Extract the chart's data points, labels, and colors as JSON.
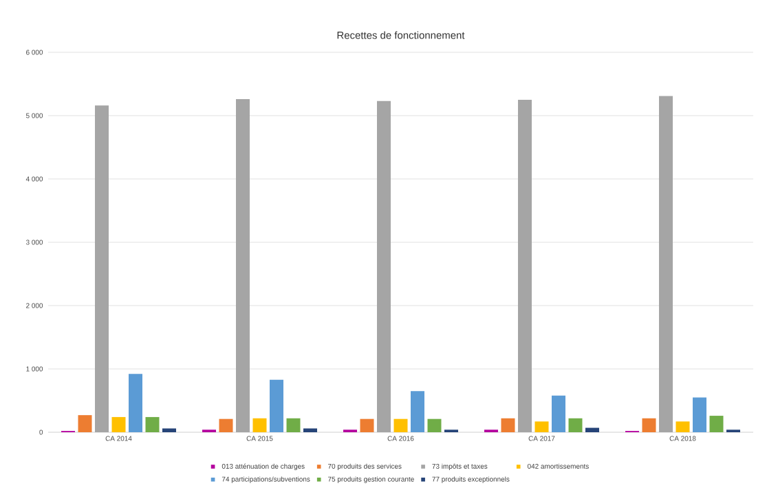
{
  "chart_data": {
    "type": "bar",
    "title": "Recettes de fonctionnement",
    "categories": [
      "CA 2014",
      "CA 2015",
      "CA 2016",
      "CA 2017",
      "CA 2018"
    ],
    "series": [
      {
        "name": "013 atténuation de charges",
        "color": "#b4009e",
        "values": [
          20,
          40,
          40,
          40,
          20
        ]
      },
      {
        "name": "70 produits des services",
        "color": "#ed7d31",
        "values": [
          270,
          210,
          210,
          220,
          220
        ]
      },
      {
        "name": "73 impôts et taxes",
        "color": "#a5a5a5",
        "values": [
          5160,
          5260,
          5230,
          5250,
          5310
        ]
      },
      {
        "name": "042 amortissements",
        "color": "#ffc000",
        "values": [
          240,
          220,
          210,
          170,
          170
        ]
      },
      {
        "name": "74 participations/subventions",
        "color": "#5b9bd5",
        "values": [
          920,
          830,
          650,
          580,
          550
        ]
      },
      {
        "name": "75 produits gestion courante",
        "color": "#70ad47",
        "values": [
          240,
          220,
          210,
          220,
          260
        ]
      },
      {
        "name": "77 produits exceptionnels",
        "color": "#264478",
        "values": [
          60,
          60,
          40,
          70,
          40
        ]
      }
    ],
    "ylim": [
      0,
      6000
    ],
    "yticks": [
      0,
      {
        "value": 1000,
        "label": "1 000"
      },
      {
        "value": 2000,
        "label": "2 000"
      },
      {
        "value": 3000,
        "label": "3 000"
      },
      {
        "value": 4000,
        "label": "4 000"
      },
      {
        "value": 5000,
        "label": "5 000"
      },
      {
        "value": 6000,
        "label": "6 000"
      }
    ],
    "grid": "y",
    "legend": "bottom"
  }
}
